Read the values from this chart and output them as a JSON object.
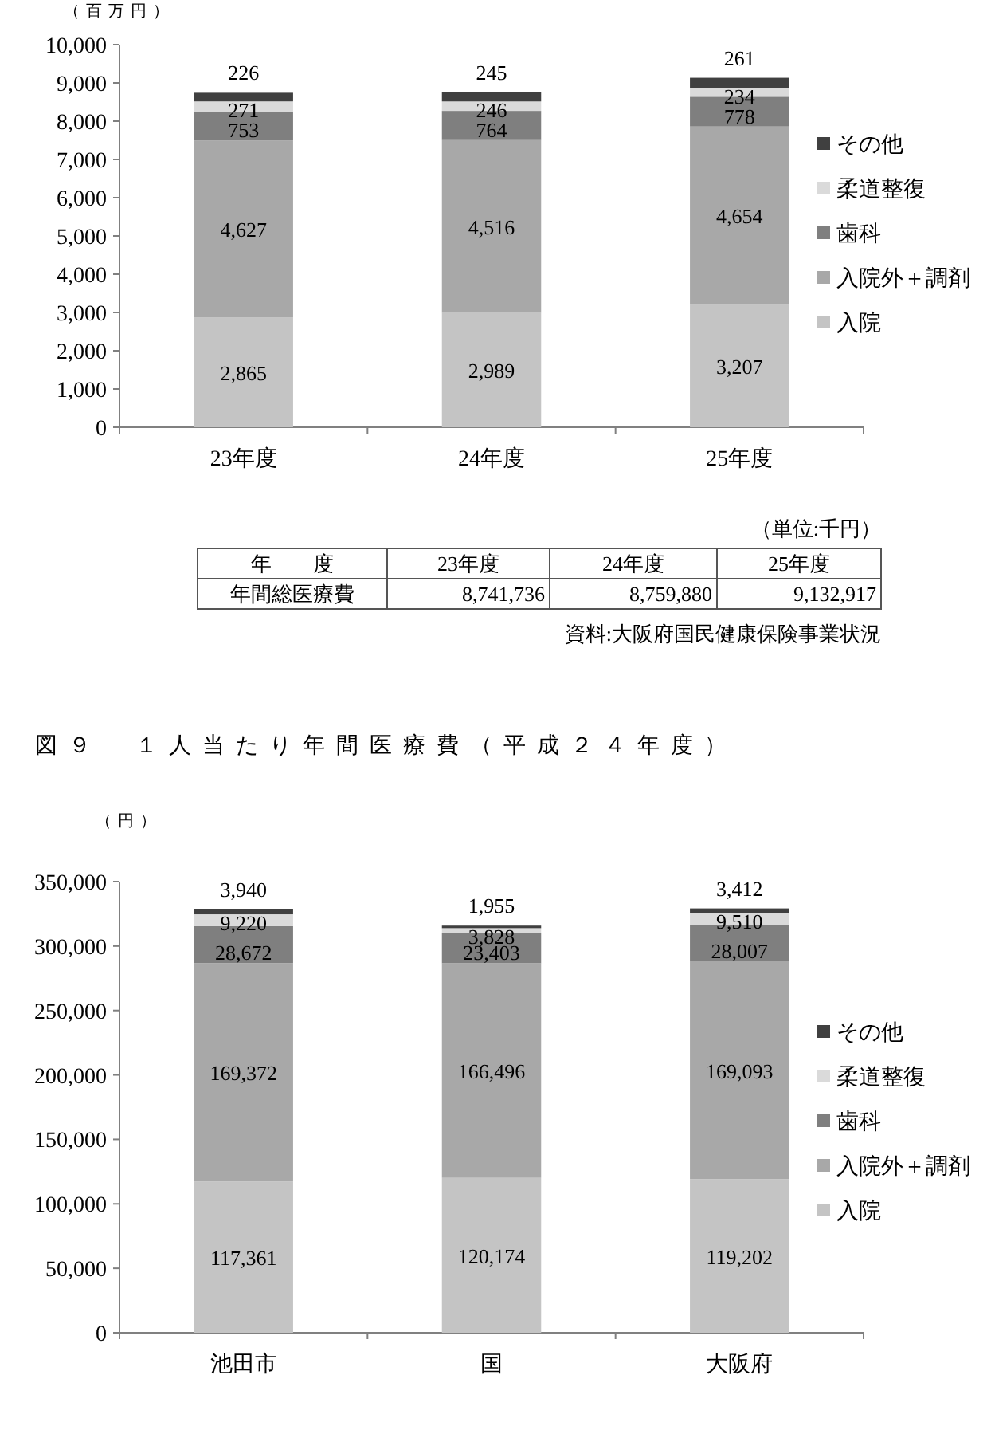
{
  "chart_data": [
    {
      "type": "bar",
      "stacked": true,
      "ylabel": "（百万円）",
      "categories": [
        "23年度",
        "24年度",
        "25年度"
      ],
      "series": [
        {
          "name": "入院",
          "color": "#c4c4c4",
          "values": [
            2865,
            2989,
            3207
          ],
          "value_labels": [
            "2,865",
            "2,989",
            "3,207"
          ]
        },
        {
          "name": "入院外＋調剤",
          "color": "#a8a8a8",
          "values": [
            4627,
            4516,
            4654
          ],
          "value_labels": [
            "4,627",
            "4,516",
            "4,654"
          ]
        },
        {
          "name": "歯科",
          "color": "#7f7f7f",
          "values": [
            753,
            764,
            778
          ],
          "value_labels": [
            "753",
            "764",
            "778"
          ]
        },
        {
          "name": "柔道整復",
          "color": "#dadada",
          "values": [
            271,
            246,
            234
          ],
          "value_labels": [
            "271",
            "246",
            "234"
          ]
        },
        {
          "name": "その他",
          "color": "#404040",
          "values": [
            226,
            245,
            261
          ],
          "value_labels": [
            "226",
            "245",
            "261"
          ]
        }
      ],
      "ylim": [
        0,
        10000
      ],
      "yticks": [
        0,
        {
          "value": 1000,
          "label": "1,000"
        },
        {
          "value": 2000,
          "label": "2,000"
        },
        {
          "value": 3000,
          "label": "3,000"
        },
        {
          "value": 4000,
          "label": "4,000"
        },
        {
          "value": 5000,
          "label": "5,000"
        },
        {
          "value": 6000,
          "label": "6,000"
        },
        {
          "value": 7000,
          "label": "7,000"
        },
        {
          "value": 8000,
          "label": "8,000"
        },
        {
          "value": 9000,
          "label": "9,000"
        },
        {
          "value": 10000,
          "label": "10,000"
        }
      ],
      "legend": "right",
      "grid": false,
      "annotations": [
        "（単位:千円）",
        "年　　度",
        "23年度",
        "24年度",
        "25年度",
        "年間総医療費",
        "8,741,736",
        "8,759,880",
        "9,132,917",
        "資料:大阪府国民健康保険事業状況"
      ]
    },
    {
      "type": "bar",
      "stacked": true,
      "title": "図９　１人当たり年間医療費（平成２４年度）",
      "ylabel": "（円）",
      "categories": [
        "池田市",
        "国",
        "大阪府"
      ],
      "series": [
        {
          "name": "入院",
          "color": "#c4c4c4",
          "values": [
            117361,
            120174,
            119202
          ],
          "value_labels": [
            "117,361",
            "120,174",
            "119,202"
          ]
        },
        {
          "name": "入院外＋調剤",
          "color": "#a8a8a8",
          "values": [
            169372,
            166496,
            169093
          ],
          "value_labels": [
            "169,372",
            "166,496",
            "169,093"
          ]
        },
        {
          "name": "歯科",
          "color": "#7f7f7f",
          "values": [
            28672,
            23403,
            28007
          ],
          "value_labels": [
            "28,672",
            "23,403",
            "28,007"
          ]
        },
        {
          "name": "柔道整復",
          "color": "#dadada",
          "values": [
            9220,
            3828,
            9510
          ],
          "value_labels": [
            "9,220",
            "3,828",
            "9,510"
          ]
        },
        {
          "name": "その他",
          "color": "#404040",
          "values": [
            3940,
            1955,
            3412
          ],
          "value_labels": [
            "3,940",
            "1,955",
            "3,412"
          ]
        }
      ],
      "ylim": [
        0,
        350000
      ],
      "yticks": [
        0,
        {
          "value": 50000,
          "label": "50,000"
        },
        {
          "value": 100000,
          "label": "100,000"
        },
        {
          "value": 150000,
          "label": "150,000"
        },
        {
          "value": 200000,
          "label": "200,000"
        },
        {
          "value": 250000,
          "label": "250,000"
        },
        {
          "value": 300000,
          "label": "300,000"
        },
        {
          "value": 350000,
          "label": "350,000"
        }
      ],
      "legend": "right",
      "grid": false
    }
  ]
}
